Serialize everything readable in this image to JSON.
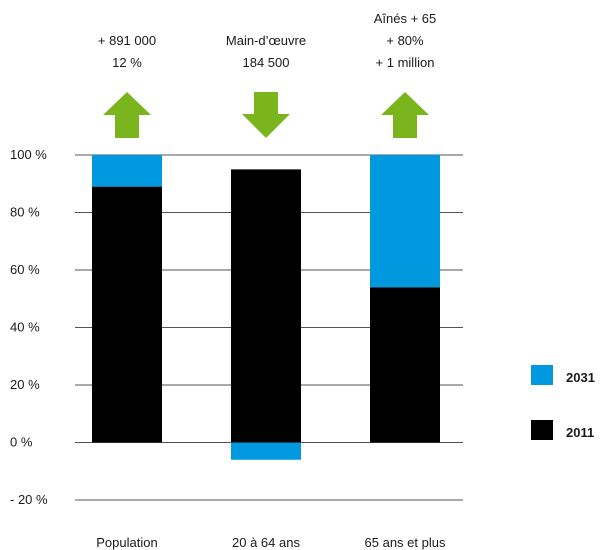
{
  "chart_data": {
    "type": "bar",
    "categories": [
      "Population",
      "20 à  64 ans",
      "65 ans et plus"
    ],
    "series": [
      {
        "name": "2011",
        "color": "#000000",
        "values": [
          89,
          95,
          54
        ]
      },
      {
        "name": "2031",
        "color": "#0099e0",
        "values": [
          11,
          -6,
          46
        ]
      }
    ],
    "ylim": [
      -20,
      100
    ],
    "yticks": [
      {
        "value": 100,
        "label": "100 %"
      },
      {
        "value": 80,
        "label": "80 %"
      },
      {
        "value": 60,
        "label": "60 %"
      },
      {
        "value": 40,
        "label": "40 %"
      },
      {
        "value": 20,
        "label": "20 %"
      },
      {
        "value": 0,
        "label": "0 %"
      },
      {
        "value": -20,
        "label": "- 20 %"
      }
    ],
    "grid": true,
    "legend_position": "right",
    "arrow_color": "#7ab51d",
    "annotations": [
      {
        "direction": "up",
        "lines": [
          "+ 891 000",
          "12 %"
        ]
      },
      {
        "direction": "down",
        "lines": [
          "Main-d’œuvre",
          "184 500"
        ]
      },
      {
        "direction": "up",
        "lines": [
          "Aînés + 65",
          "+ 80%",
          "+ 1 million"
        ]
      }
    ]
  }
}
